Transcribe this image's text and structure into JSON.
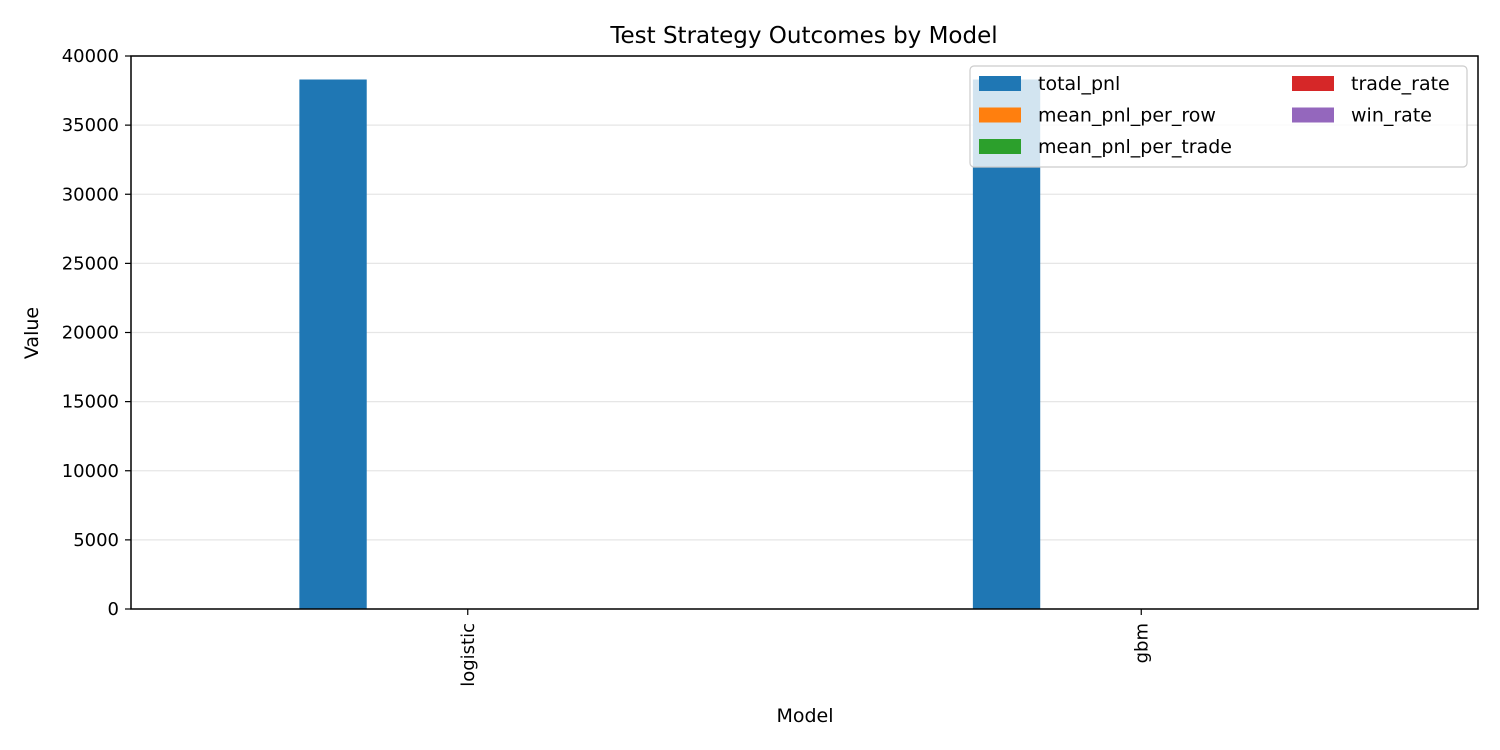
{
  "chart_data": {
    "type": "bar",
    "title": "Test Strategy Outcomes by Model",
    "xlabel": "Model",
    "ylabel": "Value",
    "categories": [
      "logistic",
      "gbm"
    ],
    "ylim": [
      0,
      40000
    ],
    "yticks": [
      0,
      5000,
      10000,
      15000,
      20000,
      25000,
      30000,
      35000,
      40000
    ],
    "grid": "y",
    "legend_position": "top-right",
    "legend_columns": 2,
    "series": [
      {
        "name": "total_pnl",
        "color": "#1f77b4",
        "values": [
          38300,
          38300
        ]
      },
      {
        "name": "mean_pnl_per_row",
        "color": "#ff7f0e",
        "values": [
          4,
          4
        ]
      },
      {
        "name": "mean_pnl_per_trade",
        "color": "#2ca02c",
        "values": [
          8,
          8
        ]
      },
      {
        "name": "trade_rate",
        "color": "#d62728",
        "values": [
          0.5,
          0.5
        ]
      },
      {
        "name": "win_rate",
        "color": "#9467bd",
        "values": [
          0.55,
          0.55
        ]
      }
    ]
  }
}
